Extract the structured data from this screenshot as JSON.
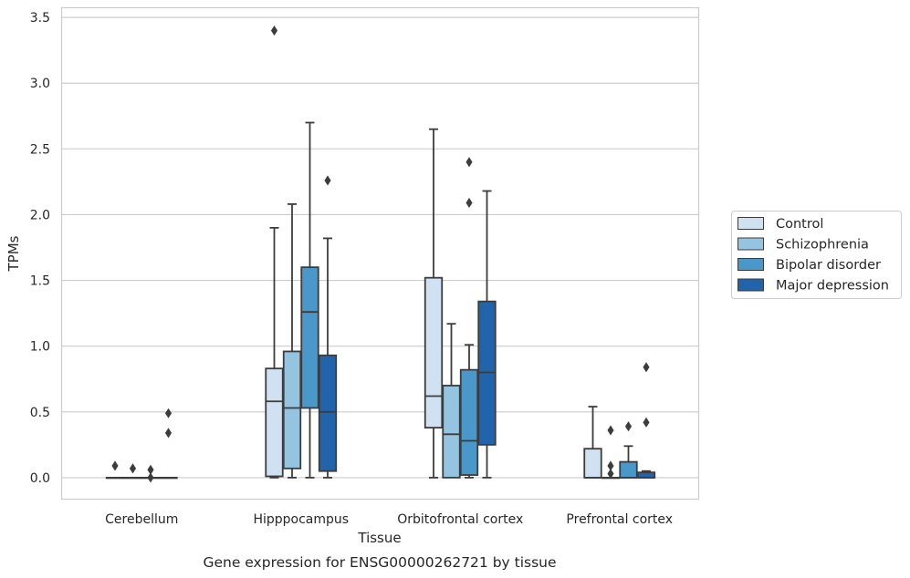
{
  "caption": "Gene expression for ENSG00000262721 by tissue",
  "chart_data": {
    "type": "box",
    "xlabel": "Tissue",
    "ylabel": "TPMs",
    "ylim": [
      -0.16,
      3.57
    ],
    "yticks": [
      "0.0",
      "0.5",
      "1.0",
      "1.5",
      "2.0",
      "2.5",
      "3.0",
      "3.5"
    ],
    "grid": "horizontal",
    "legend_position": "right",
    "categories": [
      "Cerebellum",
      "Hipppocampus",
      "Orbitofrontal cortex",
      "Prefrontal cortex"
    ],
    "series": [
      {
        "name": "Control",
        "color": "#d0e1f2",
        "boxes": [
          {
            "q1": 0.0,
            "median": 0.0,
            "q3": 0.0,
            "whisker_low": 0.0,
            "whisker_high": 0.0,
            "outliers": [
              0.09
            ]
          },
          {
            "q1": 0.01,
            "median": 0.58,
            "q3": 0.83,
            "whisker_low": 0.0,
            "whisker_high": 1.9,
            "outliers": [
              3.4
            ]
          },
          {
            "q1": 0.38,
            "median": 0.62,
            "q3": 1.52,
            "whisker_low": 0.0,
            "whisker_high": 2.65,
            "outliers": []
          },
          {
            "q1": 0.0,
            "median": 0.0,
            "q3": 0.22,
            "whisker_low": 0.0,
            "whisker_high": 0.54,
            "outliers": []
          }
        ]
      },
      {
        "name": "Schizophrenia",
        "color": "#94c4df",
        "boxes": [
          {
            "q1": 0.0,
            "median": 0.0,
            "q3": 0.0,
            "whisker_low": 0.0,
            "whisker_high": 0.0,
            "outliers": [
              0.07
            ]
          },
          {
            "q1": 0.07,
            "median": 0.53,
            "q3": 0.96,
            "whisker_low": 0.0,
            "whisker_high": 2.08,
            "outliers": []
          },
          {
            "q1": 0.0,
            "median": 0.33,
            "q3": 0.7,
            "whisker_low": 0.0,
            "whisker_high": 1.17,
            "outliers": []
          },
          {
            "q1": 0.0,
            "median": 0.0,
            "q3": 0.0,
            "whisker_low": 0.0,
            "whisker_high": 0.0,
            "outliers": [
              0.36,
              0.09,
              0.03
            ]
          }
        ]
      },
      {
        "name": "Bipolar disorder",
        "color": "#4a98c9",
        "boxes": [
          {
            "q1": 0.0,
            "median": 0.0,
            "q3": 0.0,
            "whisker_low": 0.0,
            "whisker_high": 0.0,
            "outliers": [
              0.06,
              0.0
            ]
          },
          {
            "q1": 0.53,
            "median": 1.26,
            "q3": 1.6,
            "whisker_low": 0.0,
            "whisker_high": 2.7,
            "outliers": []
          },
          {
            "q1": 0.02,
            "median": 0.28,
            "q3": 0.82,
            "whisker_low": 0.0,
            "whisker_high": 1.01,
            "outliers": [
              2.4,
              2.09
            ]
          },
          {
            "q1": 0.0,
            "median": 0.0,
            "q3": 0.12,
            "whisker_low": 0.0,
            "whisker_high": 0.24,
            "outliers": [
              0.39
            ]
          }
        ]
      },
      {
        "name": "Major depression",
        "color": "#2164ab",
        "boxes": [
          {
            "q1": 0.0,
            "median": 0.0,
            "q3": 0.0,
            "whisker_low": 0.0,
            "whisker_high": 0.0,
            "outliers": [
              0.49,
              0.34
            ]
          },
          {
            "q1": 0.05,
            "median": 0.5,
            "q3": 0.93,
            "whisker_low": 0.0,
            "whisker_high": 1.82,
            "outliers": [
              2.26
            ]
          },
          {
            "q1": 0.25,
            "median": 0.8,
            "q3": 1.34,
            "whisker_low": 0.0,
            "whisker_high": 2.18,
            "outliers": []
          },
          {
            "q1": 0.0,
            "median": 0.0,
            "q3": 0.04,
            "whisker_low": 0.0,
            "whisker_high": 0.05,
            "outliers": [
              0.84,
              0.42
            ]
          }
        ]
      }
    ]
  }
}
